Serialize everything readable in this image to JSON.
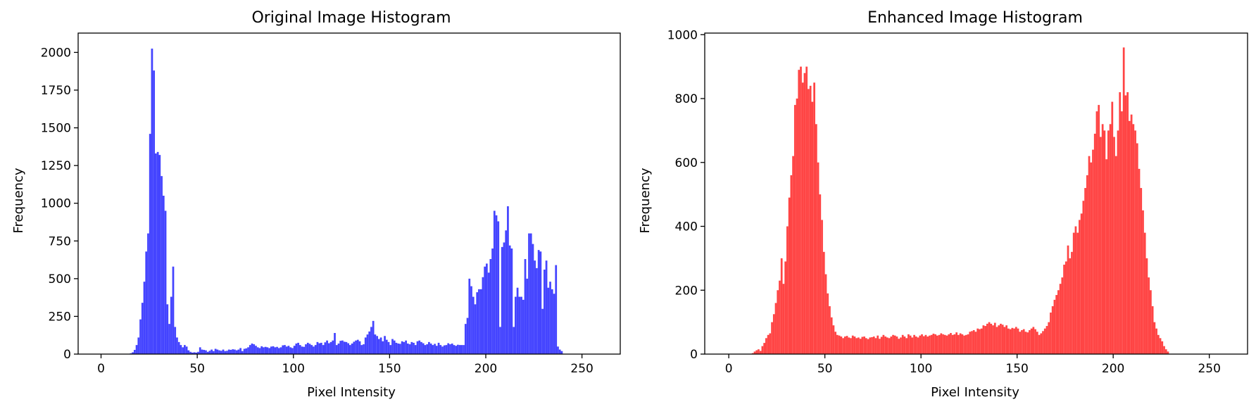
{
  "chart_data": [
    {
      "type": "bar",
      "title": "Original Image Histogram",
      "xlabel": "Pixel Intensity",
      "ylabel": "Frequency",
      "xlim": [
        -11.9,
        269.9
      ],
      "ylim": [
        0,
        2128
      ],
      "xticks": [
        0,
        50,
        100,
        150,
        200,
        250
      ],
      "yticks": [
        0,
        250,
        500,
        750,
        1000,
        1250,
        1500,
        1750,
        2000
      ],
      "color": "#4444ff",
      "grid": false,
      "bins": {
        "start": 0,
        "width": 1,
        "values": [
          0,
          0,
          0,
          0,
          0,
          0,
          0,
          0,
          0,
          0,
          0,
          0,
          0,
          0,
          2,
          5,
          12,
          28,
          60,
          110,
          230,
          340,
          480,
          680,
          800,
          1460,
          2025,
          1880,
          1330,
          1340,
          1320,
          1180,
          1050,
          950,
          330,
          200,
          380,
          580,
          180,
          110,
          80,
          60,
          45,
          60,
          50,
          25,
          15,
          10,
          12,
          10,
          15,
          45,
          30,
          28,
          25,
          15,
          22,
          30,
          20,
          35,
          30,
          25,
          22,
          30,
          20,
          22,
          30,
          28,
          32,
          30,
          25,
          30,
          40,
          20,
          35,
          38,
          45,
          60,
          70,
          65,
          55,
          45,
          40,
          52,
          45,
          48,
          45,
          40,
          50,
          52,
          45,
          48,
          40,
          45,
          58,
          60,
          50,
          55,
          45,
          40,
          55,
          70,
          75,
          60,
          50,
          48,
          65,
          75,
          68,
          60,
          50,
          60,
          80,
          72,
          75,
          60,
          78,
          90,
          72,
          80,
          90,
          140,
          60,
          70,
          88,
          90,
          82,
          80,
          72,
          60,
          70,
          82,
          90,
          95,
          85,
          60,
          65,
          110,
          130,
          150,
          180,
          220,
          130,
          120,
          100,
          110,
          85,
          120,
          95,
          80,
          60,
          100,
          90,
          75,
          70,
          68,
          85,
          80,
          90,
          70,
          65,
          80,
          75,
          60,
          85,
          90,
          80,
          72,
          60,
          65,
          80,
          70,
          60,
          68,
          55,
          75,
          60,
          50,
          58,
          60,
          72,
          65,
          70,
          60,
          55,
          62,
          60,
          60,
          60,
          200,
          240,
          500,
          450,
          380,
          330,
          410,
          430,
          430,
          510,
          580,
          600,
          540,
          630,
          700,
          950,
          920,
          880,
          180,
          710,
          740,
          820,
          980,
          720,
          700,
          180,
          380,
          440,
          380,
          380,
          360,
          630,
          500,
          800,
          800,
          730,
          620,
          570,
          690,
          680,
          300,
          560,
          620,
          440,
          480,
          430,
          400,
          590,
          50,
          30,
          20,
          0,
          0
        ]
      }
    },
    {
      "type": "bar",
      "title": "Enhanced Image Histogram",
      "xlabel": "Pixel Intensity",
      "ylabel": "Frequency",
      "xlim": [
        -12.5,
        269.9
      ],
      "ylim": [
        0,
        1005
      ],
      "xticks": [
        0,
        50,
        100,
        150,
        200,
        250
      ],
      "yticks": [
        0,
        200,
        400,
        600,
        800,
        1000
      ],
      "color": "#ff4444",
      "grid": false,
      "bins": {
        "start": 0,
        "width": 1,
        "values": [
          0,
          0,
          0,
          0,
          0,
          0,
          0,
          0,
          0,
          0,
          0,
          0,
          3,
          8,
          12,
          15,
          10,
          25,
          35,
          50,
          60,
          65,
          100,
          125,
          160,
          200,
          230,
          300,
          220,
          290,
          400,
          490,
          560,
          620,
          780,
          800,
          890,
          900,
          850,
          880,
          900,
          830,
          840,
          790,
          850,
          720,
          600,
          500,
          420,
          320,
          250,
          190,
          150,
          115,
          90,
          70,
          60,
          58,
          55,
          50,
          55,
          57,
          52,
          50,
          58,
          55,
          50,
          52,
          48,
          54,
          55,
          50,
          47,
          52,
          53,
          55,
          50,
          58,
          48,
          54,
          60,
          55,
          52,
          50,
          55,
          60,
          58,
          55,
          48,
          52,
          60,
          55,
          50,
          62,
          58,
          52,
          60,
          55,
          52,
          58,
          62,
          56,
          60,
          55,
          58,
          60,
          64,
          62,
          58,
          60,
          65,
          62,
          60,
          58,
          62,
          66,
          60,
          62,
          68,
          60,
          65,
          62,
          58,
          60,
          62,
          70,
          72,
          75,
          70,
          80,
          78,
          80,
          90,
          88,
          95,
          100,
          95,
          90,
          98,
          85,
          90,
          95,
          92,
          85,
          90,
          80,
          78,
          82,
          80,
          85,
          80,
          70,
          75,
          78,
          70,
          68,
          75,
          80,
          85,
          78,
          70,
          60,
          65,
          72,
          80,
          88,
          100,
          130,
          150,
          170,
          185,
          200,
          220,
          240,
          280,
          290,
          340,
          300,
          320,
          380,
          400,
          380,
          420,
          440,
          480,
          520,
          560,
          620,
          600,
          640,
          690,
          760,
          780,
          680,
          720,
          700,
          610,
          700,
          720,
          790,
          680,
          620,
          700,
          820,
          760,
          960,
          810,
          820,
          730,
          750,
          720,
          700,
          660,
          580,
          520,
          450,
          380,
          300,
          240,
          200,
          150,
          100,
          80,
          60,
          50,
          40,
          25,
          15,
          8,
          0,
          0,
          0,
          0,
          0
        ]
      }
    }
  ]
}
